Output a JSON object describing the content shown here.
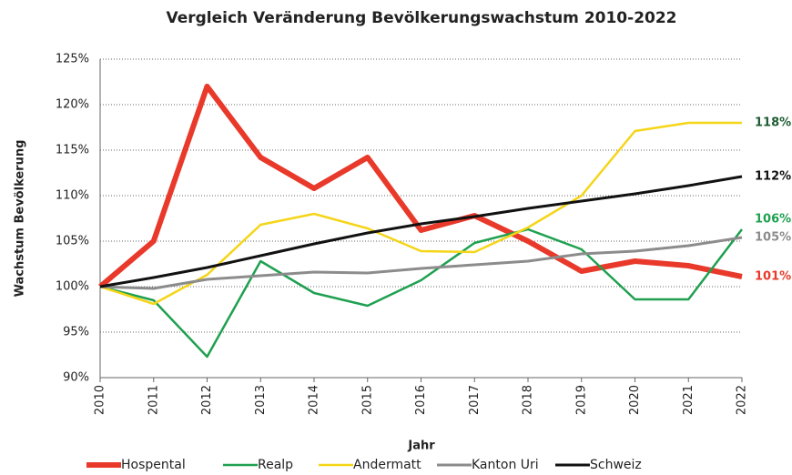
{
  "chart_data": {
    "type": "line",
    "title": "Vergleich Veränderung Bevölkerungswachstum 2010-2022",
    "x_label": "Jahr",
    "y_label": "Wachstum Bevölkerung",
    "categories": [
      "2010",
      "2011",
      "2012",
      "2013",
      "2014",
      "2015",
      "2016",
      "2017",
      "2018",
      "2019",
      "2020",
      "2021",
      "2022"
    ],
    "ylim": [
      90,
      125
    ],
    "yticks": [
      {
        "value": 90,
        "label": "90%"
      },
      {
        "value": 95,
        "label": "95%"
      },
      {
        "value": 100,
        "label": "100%"
      },
      {
        "value": 105,
        "label": "105%"
      },
      {
        "value": 110,
        "label": "110%"
      },
      {
        "value": 115,
        "label": "115%"
      },
      {
        "value": 120,
        "label": "120%"
      },
      {
        "value": 125,
        "label": "125%"
      }
    ],
    "grid": true,
    "legend": "bottom",
    "series": [
      {
        "name": "Hospental",
        "color": "#e8392a",
        "width": 6,
        "label_color": "#e8392a",
        "values": [
          100,
          105,
          122,
          114.2,
          110.8,
          114.2,
          106.2,
          107.8,
          105,
          101.7,
          102.8,
          102.3,
          101.1
        ],
        "value_labels": [
          null,
          null,
          null,
          null,
          null,
          null,
          null,
          null,
          null,
          null,
          null,
          null,
          "101%"
        ]
      },
      {
        "name": "Realp",
        "color": "#1fa050",
        "width": 2.5,
        "label_color": "#1fa050",
        "values": [
          100,
          98.5,
          92.3,
          102.8,
          99.3,
          97.9,
          100.7,
          104.8,
          106.3,
          104.1,
          98.6,
          98.6,
          106.3
        ],
        "value_labels": [
          null,
          null,
          null,
          null,
          null,
          null,
          null,
          null,
          null,
          null,
          null,
          null,
          "106%"
        ]
      },
      {
        "name": "Andermatt",
        "color": "#f5d518",
        "width": 2.5,
        "label_color": "#1e5c32",
        "values": [
          100,
          98.1,
          101.3,
          106.8,
          108,
          106.4,
          103.9,
          103.8,
          106.5,
          110,
          117.1,
          118,
          118
        ],
        "value_labels": [
          null,
          null,
          null,
          null,
          null,
          null,
          null,
          null,
          null,
          null,
          null,
          null,
          "118%"
        ]
      },
      {
        "name": "Kanton Uri",
        "color": "#8c8c8c",
        "width": 3,
        "label_color": "#8c8c8c",
        "values": [
          100,
          99.8,
          100.8,
          101.2,
          101.6,
          101.5,
          102,
          102.4,
          102.8,
          103.6,
          103.9,
          104.5,
          105.4
        ],
        "value_labels": [
          null,
          null,
          null,
          null,
          null,
          null,
          null,
          null,
          null,
          null,
          null,
          null,
          "105%"
        ]
      },
      {
        "name": "Schweiz",
        "color": "#111111",
        "width": 3,
        "label_color": "#111111",
        "values": [
          100,
          101,
          102.1,
          103.4,
          104.7,
          105.9,
          106.9,
          107.7,
          108.6,
          109.4,
          110.2,
          111.1,
          112.1
        ],
        "value_labels": [
          null,
          null,
          null,
          null,
          null,
          null,
          null,
          null,
          null,
          null,
          null,
          null,
          "112%"
        ]
      }
    ]
  }
}
